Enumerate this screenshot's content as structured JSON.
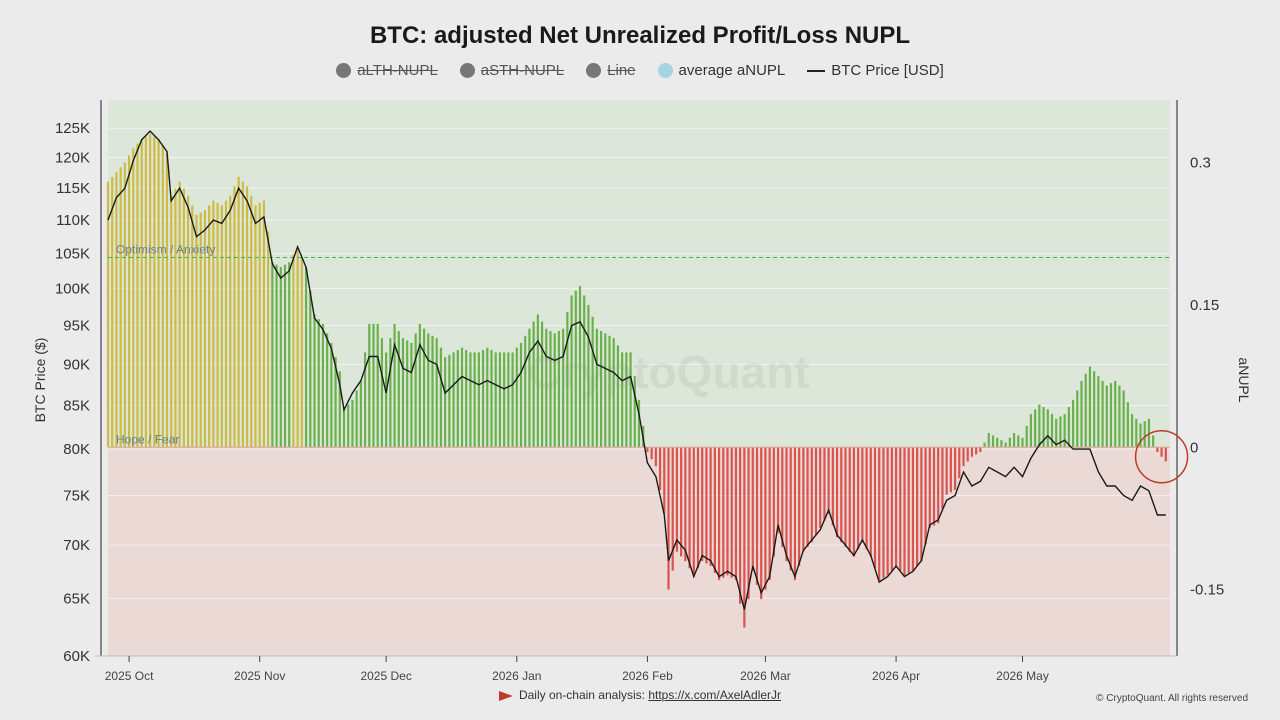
{
  "page": {
    "title": "BTC: adjusted Net Unrealized Profit/Loss NUPL",
    "footer_prefix": "Daily on-chain analysis: ",
    "footer_link": "https://x.com/AxelAdlerJr",
    "copyright": "© CryptoQuant. All rights reserved",
    "watermark": "CryptoQuant"
  },
  "legend": [
    {
      "label": "aLTH-NUPL",
      "marker": "dot",
      "color": "#777777",
      "enabled": false
    },
    {
      "label": "aSTH-NUPL",
      "marker": "dot",
      "color": "#777777",
      "enabled": false
    },
    {
      "label": "Line",
      "marker": "dot",
      "color": "#777777",
      "enabled": false
    },
    {
      "label": "average aNUPL",
      "marker": "dot",
      "color": "#a6d4e0",
      "enabled": true
    },
    {
      "label": "BTC Price [USD]",
      "marker": "line",
      "color": "#222222",
      "enabled": true
    }
  ],
  "chart_data": {
    "type": "bar",
    "title": "BTC: adjusted Net Unrealized Profit/Loss NUPL",
    "ylabel_left": "BTC Price ($)",
    "ylabel_right": "aNUPL",
    "left_axis": {
      "scale": "log",
      "range": [
        60000,
        130000
      ],
      "ticks": [
        60000,
        65000,
        70000,
        75000,
        80000,
        85000,
        90000,
        95000,
        100000,
        105000,
        110000,
        115000,
        120000,
        125000
      ],
      "tick_labels": [
        "60K",
        "65K",
        "70K",
        "75K",
        "80K",
        "85K",
        "90K",
        "95K",
        "100K",
        "105K",
        "110K",
        "115K",
        "120K",
        "125K"
      ]
    },
    "right_axis": {
      "range": [
        -0.22,
        0.366
      ],
      "ticks": [
        -0.15,
        0,
        0.15,
        0.3
      ],
      "tick_labels": [
        "-0.15",
        "0",
        "0.15",
        "0.3"
      ]
    },
    "x_axis": {
      "start": "2025-09-26",
      "end": "2026-06-05",
      "ticks": [
        "2025-10-01",
        "2025-11-01",
        "2025-12-01",
        "2026-01-01",
        "2026-02-01",
        "2026-03-01",
        "2026-04-01",
        "2026-05-01"
      ],
      "tick_labels": [
        "2025 Oct",
        "2025 Nov",
        "2025 Dec",
        "2026 Jan",
        "2026 Feb",
        "2026 Mar",
        "2026 Apr",
        "2026 May"
      ]
    },
    "zones": [
      {
        "label": "Optimism / Anxiety",
        "threshold": 0.2,
        "color": "#4caf50",
        "style": "dashed"
      },
      {
        "label": "Hope / Fear",
        "threshold": 0,
        "color": "#e57373"
      }
    ],
    "bar_colors": {
      "optimism": "#cdbb45",
      "hope": "#6ab04c",
      "fear": "#d9534f"
    },
    "price_series": {
      "name": "BTC Price [USD]",
      "points": [
        [
          "2025-09-26",
          110000
        ],
        [
          "2025-09-28",
          113500
        ],
        [
          "2025-09-30",
          115000
        ],
        [
          "2025-10-02",
          119500
        ],
        [
          "2025-10-04",
          123000
        ],
        [
          "2025-10-06",
          124500
        ],
        [
          "2025-10-08",
          123000
        ],
        [
          "2025-10-10",
          121000
        ],
        [
          "2025-10-11",
          113000
        ],
        [
          "2025-10-13",
          115000
        ],
        [
          "2025-10-15",
          112000
        ],
        [
          "2025-10-17",
          107500
        ],
        [
          "2025-10-19",
          108500
        ],
        [
          "2025-10-21",
          110000
        ],
        [
          "2025-10-23",
          109500
        ],
        [
          "2025-10-25",
          111500
        ],
        [
          "2025-10-27",
          115000
        ],
        [
          "2025-10-29",
          113000
        ],
        [
          "2025-10-31",
          109500
        ],
        [
          "2025-11-02",
          110500
        ],
        [
          "2025-11-04",
          103500
        ],
        [
          "2025-11-06",
          101500
        ],
        [
          "2025-11-08",
          102500
        ],
        [
          "2025-11-10",
          106000
        ],
        [
          "2025-11-12",
          103000
        ],
        [
          "2025-11-14",
          96000
        ],
        [
          "2025-11-16",
          94500
        ],
        [
          "2025-11-18",
          92000
        ],
        [
          "2025-11-20",
          87500
        ],
        [
          "2025-11-21",
          84500
        ],
        [
          "2025-11-23",
          86500
        ],
        [
          "2025-11-25",
          88000
        ],
        [
          "2025-11-27",
          91000
        ],
        [
          "2025-11-29",
          91000
        ],
        [
          "2025-12-01",
          86500
        ],
        [
          "2025-12-03",
          92500
        ],
        [
          "2025-12-05",
          89500
        ],
        [
          "2025-12-07",
          89000
        ],
        [
          "2025-12-09",
          92500
        ],
        [
          "2025-12-11",
          90500
        ],
        [
          "2025-12-13",
          90000
        ],
        [
          "2025-12-15",
          86500
        ],
        [
          "2025-12-17",
          87500
        ],
        [
          "2025-12-19",
          88500
        ],
        [
          "2025-12-21",
          88000
        ],
        [
          "2025-12-23",
          87500
        ],
        [
          "2025-12-25",
          88000
        ],
        [
          "2025-12-27",
          87500
        ],
        [
          "2025-12-29",
          87000
        ],
        [
          "2025-12-31",
          87500
        ],
        [
          "2026-01-02",
          89000
        ],
        [
          "2026-01-04",
          91500
        ],
        [
          "2026-01-06",
          93000
        ],
        [
          "2026-01-08",
          91000
        ],
        [
          "2026-01-10",
          90500
        ],
        [
          "2026-01-12",
          91000
        ],
        [
          "2026-01-14",
          95000
        ],
        [
          "2026-01-16",
          95500
        ],
        [
          "2026-01-18",
          93500
        ],
        [
          "2026-01-20",
          90000
        ],
        [
          "2026-01-22",
          89500
        ],
        [
          "2026-01-24",
          89000
        ],
        [
          "2026-01-26",
          88000
        ],
        [
          "2026-01-28",
          88500
        ],
        [
          "2026-01-30",
          84000
        ],
        [
          "2026-02-01",
          78500
        ],
        [
          "2026-02-03",
          77000
        ],
        [
          "2026-02-05",
          73000
        ],
        [
          "2026-02-06",
          68500
        ],
        [
          "2026-02-08",
          70500
        ],
        [
          "2026-02-10",
          69500
        ],
        [
          "2026-02-12",
          67000
        ],
        [
          "2026-02-14",
          69000
        ],
        [
          "2026-02-16",
          68500
        ],
        [
          "2026-02-18",
          67000
        ],
        [
          "2026-02-20",
          67500
        ],
        [
          "2026-02-22",
          67000
        ],
        [
          "2026-02-24",
          64000
        ],
        [
          "2026-02-26",
          68000
        ],
        [
          "2026-02-28",
          65500
        ],
        [
          "2026-03-02",
          67000
        ],
        [
          "2026-03-04",
          72000
        ],
        [
          "2026-03-06",
          69000
        ],
        [
          "2026-03-08",
          67000
        ],
        [
          "2026-03-10",
          69500
        ],
        [
          "2026-03-12",
          70500
        ],
        [
          "2026-03-14",
          71500
        ],
        [
          "2026-03-16",
          73500
        ],
        [
          "2026-03-18",
          71000
        ],
        [
          "2026-03-20",
          70000
        ],
        [
          "2026-03-22",
          69000
        ],
        [
          "2026-03-24",
          70500
        ],
        [
          "2026-03-26",
          69000
        ],
        [
          "2026-03-28",
          66500
        ],
        [
          "2026-03-30",
          67000
        ],
        [
          "2026-04-01",
          68000
        ],
        [
          "2026-04-03",
          67000
        ],
        [
          "2026-04-05",
          67500
        ],
        [
          "2026-04-07",
          68500
        ],
        [
          "2026-04-09",
          72000
        ],
        [
          "2026-04-11",
          72500
        ],
        [
          "2026-04-13",
          74500
        ],
        [
          "2026-04-15",
          75000
        ],
        [
          "2026-04-17",
          77500
        ],
        [
          "2026-04-19",
          76000
        ],
        [
          "2026-04-21",
          76500
        ],
        [
          "2026-04-23",
          78000
        ],
        [
          "2026-04-25",
          77500
        ],
        [
          "2026-04-27",
          77000
        ],
        [
          "2026-04-29",
          78000
        ],
        [
          "2026-05-01",
          77000
        ],
        [
          "2026-05-03",
          79000
        ],
        [
          "2026-05-05",
          80500
        ],
        [
          "2026-05-07",
          81500
        ],
        [
          "2026-05-09",
          80500
        ],
        [
          "2026-05-11",
          81000
        ],
        [
          "2026-05-13",
          80000
        ],
        [
          "2026-05-15",
          80000
        ],
        [
          "2026-05-17",
          80000
        ],
        [
          "2026-05-19",
          77500
        ],
        [
          "2026-05-21",
          76000
        ],
        [
          "2026-05-23",
          76000
        ],
        [
          "2026-05-25",
          75000
        ],
        [
          "2026-05-27",
          74500
        ],
        [
          "2026-05-29",
          76000
        ],
        [
          "2026-05-31",
          75500
        ],
        [
          "2026-06-02",
          73000
        ],
        [
          "2026-06-04",
          73000
        ]
      ]
    },
    "anupl_series": {
      "name": "average aNUPL",
      "points": [
        [
          "2025-09-26",
          0.28
        ],
        [
          "2025-09-28",
          0.29
        ],
        [
          "2025-09-30",
          0.3
        ],
        [
          "2025-10-02",
          0.315
        ],
        [
          "2025-10-04",
          0.325
        ],
        [
          "2025-10-06",
          0.33
        ],
        [
          "2025-10-08",
          0.325
        ],
        [
          "2025-10-10",
          0.31
        ],
        [
          "2025-10-11",
          0.265
        ],
        [
          "2025-10-13",
          0.28
        ],
        [
          "2025-10-15",
          0.265
        ],
        [
          "2025-10-17",
          0.245
        ],
        [
          "2025-10-19",
          0.25
        ],
        [
          "2025-10-21",
          0.26
        ],
        [
          "2025-10-23",
          0.255
        ],
        [
          "2025-10-25",
          0.265
        ],
        [
          "2025-10-27",
          0.285
        ],
        [
          "2025-10-29",
          0.275
        ],
        [
          "2025-10-31",
          0.255
        ],
        [
          "2025-11-02",
          0.26
        ],
        [
          "2025-11-04",
          0.195
        ],
        [
          "2025-11-06",
          0.19
        ],
        [
          "2025-11-08",
          0.195
        ],
        [
          "2025-11-10",
          0.21
        ],
        [
          "2025-11-12",
          0.19
        ],
        [
          "2025-11-14",
          0.14
        ],
        [
          "2025-11-16",
          0.13
        ],
        [
          "2025-11-18",
          0.11
        ],
        [
          "2025-11-20",
          0.08
        ],
        [
          "2025-11-21",
          0.04
        ],
        [
          "2025-11-23",
          0.05
        ],
        [
          "2025-11-25",
          0.07
        ],
        [
          "2025-11-27",
          0.13
        ],
        [
          "2025-11-29",
          0.13
        ],
        [
          "2025-12-01",
          0.1
        ],
        [
          "2025-12-03",
          0.13
        ],
        [
          "2025-12-05",
          0.115
        ],
        [
          "2025-12-07",
          0.11
        ],
        [
          "2025-12-09",
          0.13
        ],
        [
          "2025-12-11",
          0.12
        ],
        [
          "2025-12-13",
          0.115
        ],
        [
          "2025-12-15",
          0.095
        ],
        [
          "2025-12-17",
          0.1
        ],
        [
          "2025-12-19",
          0.105
        ],
        [
          "2025-12-21",
          0.1
        ],
        [
          "2025-12-23",
          0.1
        ],
        [
          "2025-12-25",
          0.105
        ],
        [
          "2025-12-27",
          0.1
        ],
        [
          "2025-12-29",
          0.1
        ],
        [
          "2025-12-31",
          0.1
        ],
        [
          "2026-01-02",
          0.11
        ],
        [
          "2026-01-04",
          0.125
        ],
        [
          "2026-01-06",
          0.14
        ],
        [
          "2026-01-08",
          0.125
        ],
        [
          "2026-01-10",
          0.12
        ],
        [
          "2026-01-12",
          0.125
        ],
        [
          "2026-01-14",
          0.16
        ],
        [
          "2026-01-16",
          0.17
        ],
        [
          "2026-01-18",
          0.15
        ],
        [
          "2026-01-20",
          0.125
        ],
        [
          "2026-01-22",
          0.12
        ],
        [
          "2026-01-24",
          0.115
        ],
        [
          "2026-01-26",
          0.1
        ],
        [
          "2026-01-28",
          0.1
        ],
        [
          "2026-01-30",
          0.05
        ],
        [
          "2026-02-01",
          -0.005
        ],
        [
          "2026-02-03",
          -0.02
        ],
        [
          "2026-02-05",
          -0.07
        ],
        [
          "2026-02-06",
          -0.15
        ],
        [
          "2026-02-08",
          -0.11
        ],
        [
          "2026-02-10",
          -0.12
        ],
        [
          "2026-02-12",
          -0.135
        ],
        [
          "2026-02-14",
          -0.12
        ],
        [
          "2026-02-16",
          -0.125
        ],
        [
          "2026-02-18",
          -0.14
        ],
        [
          "2026-02-20",
          -0.135
        ],
        [
          "2026-02-22",
          -0.14
        ],
        [
          "2026-02-24",
          -0.19
        ],
        [
          "2026-02-26",
          -0.13
        ],
        [
          "2026-02-28",
          -0.16
        ],
        [
          "2026-03-02",
          -0.14
        ],
        [
          "2026-03-04",
          -0.09
        ],
        [
          "2026-03-06",
          -0.12
        ],
        [
          "2026-03-08",
          -0.14
        ],
        [
          "2026-03-10",
          -0.11
        ],
        [
          "2026-03-12",
          -0.1
        ],
        [
          "2026-03-14",
          -0.085
        ],
        [
          "2026-03-16",
          -0.07
        ],
        [
          "2026-03-18",
          -0.095
        ],
        [
          "2026-03-20",
          -0.105
        ],
        [
          "2026-03-22",
          -0.115
        ],
        [
          "2026-03-24",
          -0.1
        ],
        [
          "2026-03-26",
          -0.115
        ],
        [
          "2026-03-28",
          -0.14
        ],
        [
          "2026-03-30",
          -0.135
        ],
        [
          "2026-04-01",
          -0.125
        ],
        [
          "2026-04-03",
          -0.135
        ],
        [
          "2026-04-05",
          -0.13
        ],
        [
          "2026-04-07",
          -0.12
        ],
        [
          "2026-04-09",
          -0.085
        ],
        [
          "2026-04-11",
          -0.08
        ],
        [
          "2026-04-13",
          -0.05
        ],
        [
          "2026-04-15",
          -0.045
        ],
        [
          "2026-04-17",
          -0.02
        ],
        [
          "2026-04-19",
          -0.01
        ],
        [
          "2026-04-21",
          -0.005
        ],
        [
          "2026-04-23",
          0.015
        ],
        [
          "2026-04-25",
          0.01
        ],
        [
          "2026-04-27",
          0.005
        ],
        [
          "2026-04-29",
          0.015
        ],
        [
          "2026-05-01",
          0.01
        ],
        [
          "2026-05-03",
          0.035
        ],
        [
          "2026-05-05",
          0.045
        ],
        [
          "2026-05-07",
          0.04
        ],
        [
          "2026-05-09",
          0.03
        ],
        [
          "2026-05-11",
          0.035
        ],
        [
          "2026-05-13",
          0.05
        ],
        [
          "2026-05-15",
          0.07
        ],
        [
          "2026-05-17",
          0.085
        ],
        [
          "2026-05-19",
          0.075
        ],
        [
          "2026-05-21",
          0.065
        ],
        [
          "2026-05-23",
          0.07
        ],
        [
          "2026-05-25",
          0.06
        ],
        [
          "2026-05-27",
          0.035
        ],
        [
          "2026-05-29",
          0.025
        ],
        [
          "2026-05-31",
          0.03
        ],
        [
          "2026-06-02",
          -0.005
        ],
        [
          "2026-06-04",
          -0.015
        ]
      ]
    },
    "annotation": {
      "type": "circle",
      "date": "2026-06-03",
      "value": -0.01,
      "color": "#c0392b"
    }
  }
}
